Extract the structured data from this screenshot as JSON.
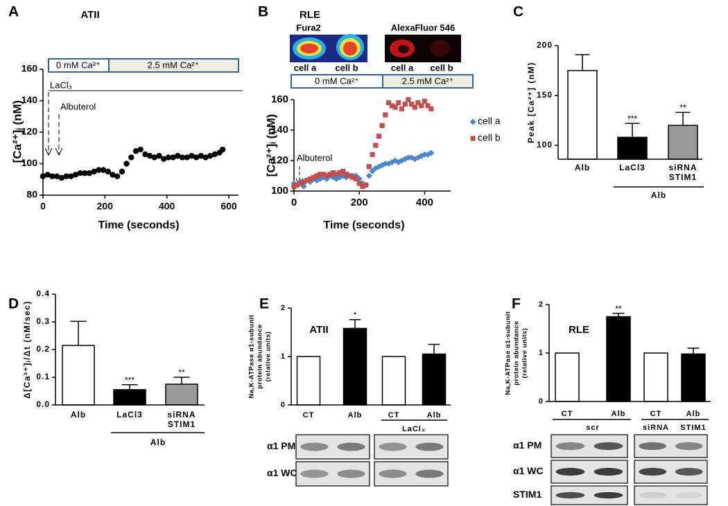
{
  "chart_data": [
    {
      "label": "A",
      "title": "ATII",
      "type": "scatter",
      "xlabel": "Time (seconds)",
      "ylabel": "[Ca²⁺]ᵢ (nM)",
      "x": [
        0,
        15,
        30,
        45,
        60,
        75,
        90,
        105,
        120,
        135,
        150,
        165,
        180,
        195,
        210,
        225,
        240,
        255,
        270,
        285,
        300,
        315,
        330,
        345,
        360,
        375,
        390,
        405,
        420,
        435,
        450,
        465,
        480,
        495,
        510,
        525,
        540,
        555,
        570,
        580
      ],
      "series": [
        {
          "color": "#000000",
          "marker": "circle",
          "values": [
            92,
            93,
            92,
            92,
            91,
            92,
            92,
            93,
            94,
            94,
            94,
            95,
            96,
            96,
            95,
            93,
            92,
            95,
            100,
            104,
            108,
            109,
            106,
            105,
            104,
            105,
            103,
            104,
            104,
            105,
            104,
            104,
            105,
            104,
            105,
            104,
            105,
            106,
            107,
            109
          ]
        }
      ],
      "xlim": [
        0,
        600
      ],
      "xticks": [
        0,
        200,
        400,
        600
      ],
      "ylim": [
        80,
        160
      ],
      "yticks": [
        80,
        100,
        120,
        140,
        160
      ],
      "annotations": {
        "low_ca": "0 mM Ca²⁺",
        "high_ca": "2.5 mM Ca²⁺",
        "lacl3": "LaCl₃",
        "albuterol": "Albuterol"
      }
    },
    {
      "label": "B",
      "title": "RLE",
      "type": "scatter",
      "xlabel": "Time (seconds)",
      "ylabel": "[Ca²⁺]ᵢ (nM)",
      "x": [
        0,
        10,
        20,
        30,
        40,
        50,
        60,
        70,
        80,
        90,
        100,
        110,
        120,
        130,
        140,
        150,
        160,
        170,
        180,
        190,
        200,
        210,
        220,
        230,
        240,
        250,
        260,
        270,
        280,
        290,
        300,
        310,
        320,
        330,
        340,
        350,
        360,
        370,
        380,
        390,
        400,
        410,
        420
      ],
      "series": [
        {
          "name": "cell a",
          "color": "#4a86c8",
          "marker": "diamond",
          "values": [
            105,
            104,
            106,
            103,
            107,
            106,
            108,
            107,
            108,
            109,
            108,
            110,
            109,
            108,
            109,
            110,
            109,
            110,
            110,
            110,
            108,
            105,
            104,
            110,
            113,
            115,
            116,
            117,
            118,
            118,
            119,
            120,
            119,
            120,
            121,
            122,
            122,
            121,
            122,
            123,
            124,
            124,
            125
          ]
        },
        {
          "name": "cell b",
          "color": "#c0504d",
          "marker": "square",
          "values": [
            103,
            104,
            105,
            106,
            107,
            108,
            109,
            110,
            111,
            111,
            110,
            111,
            112,
            111,
            112,
            113,
            111,
            110,
            109,
            108,
            105,
            103,
            104,
            116,
            124,
            130,
            136,
            143,
            150,
            158,
            156,
            155,
            158,
            154,
            157,
            160,
            157,
            155,
            158,
            156,
            159,
            156,
            154
          ]
        }
      ],
      "xlim": [
        0,
        450
      ],
      "xticks": [
        0,
        200,
        400
      ],
      "ylim": [
        100,
        160
      ],
      "yticks": [
        100,
        120,
        140,
        160
      ],
      "image_labels": [
        "Fura2",
        "AlexaFluor 546"
      ],
      "cell_labels": [
        "cell a",
        "cell b",
        "cell a",
        "cell b"
      ],
      "annotations": {
        "low_ca": "0 mM Ca²⁺",
        "high_ca": "2.5 mM Ca²⁺",
        "albuterol": "Albuterol"
      }
    },
    {
      "label": "C",
      "type": "bar",
      "ylabel": "Peak [Ca²⁺] (nM)",
      "categories": [
        "Alb",
        "LaCl3",
        [
          "siRNA",
          "STIM1"
        ]
      ],
      "values": [
        175,
        108,
        120
      ],
      "errors": [
        16,
        14,
        13
      ],
      "significance": [
        null,
        "***",
        "**"
      ],
      "colors": [
        "#ffffff",
        "#000000",
        "#999999"
      ],
      "ylim": [
        86,
        200
      ],
      "yticks": [
        100,
        150,
        200
      ],
      "group_labels": [
        "Alb"
      ]
    },
    {
      "label": "D",
      "type": "bar",
      "ylabel": "Δ[Ca²⁺]ᵢ/Δt (nM/sec)",
      "categories": [
        "Alb",
        "LaCl3",
        [
          "siRNA",
          "STIM1"
        ]
      ],
      "values": [
        0.215,
        0.055,
        0.075
      ],
      "errors": [
        0.087,
        0.018,
        0.025
      ],
      "significance": [
        null,
        "***",
        "**"
      ],
      "colors": [
        "#ffffff",
        "#000000",
        "#999999"
      ],
      "ylim": [
        0,
        0.4
      ],
      "yticks": [
        {
          "value": 0,
          "label": "0.0"
        },
        0.1,
        0.2,
        0.3,
        0.4
      ],
      "group_labels": [
        "Alb"
      ]
    },
    {
      "label": "E",
      "title": "ATII",
      "type": "bar",
      "ylabel": [
        "Na,K-ATPase α1-subunit",
        "protein abundance",
        "(relative units)"
      ],
      "categories": [
        "CT",
        "Alb",
        "CT",
        "Alb"
      ],
      "values": [
        1,
        1.58,
        1,
        1.05
      ],
      "errors": [
        0,
        0.18,
        0,
        0.2
      ],
      "significance": [
        null,
        "*",
        null,
        null
      ],
      "colors": [
        "#ffffff",
        "#000000",
        "#ffffff",
        "#000000"
      ],
      "ylim": [
        0,
        2
      ],
      "yticks": [
        0,
        1,
        2
      ],
      "group_labels": [
        "LaCl₃"
      ],
      "blot_labels": [
        "α1 PM",
        "α1 WC"
      ]
    },
    {
      "label": "F",
      "title": "RLE",
      "type": "bar",
      "ylabel": [
        "Na,K-ATPase α1-subunit",
        "protein abundance",
        "(relative units)"
      ],
      "categories": [
        "CT",
        "Alb",
        "CT",
        "Alb"
      ],
      "values": [
        1,
        1.75,
        1,
        0.98
      ],
      "errors": [
        0,
        0.07,
        0,
        0.12
      ],
      "significance": [
        null,
        "**",
        null,
        null
      ],
      "colors": [
        "#ffffff",
        "#000000",
        "#ffffff",
        "#000000"
      ],
      "ylim": [
        0,
        2
      ],
      "yticks": [
        0,
        1,
        2
      ],
      "group_labels": [
        "scr",
        "siRNA",
        "STIM1"
      ],
      "blot_labels": [
        "α1 PM",
        "α1 WC",
        "STIM1"
      ]
    }
  ]
}
